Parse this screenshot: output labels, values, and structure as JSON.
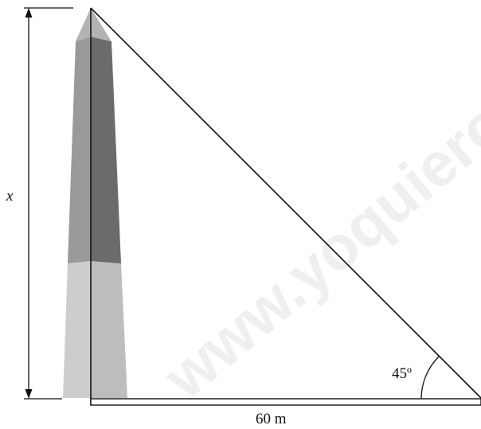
{
  "labels": {
    "height": "x",
    "base": "60 m",
    "angle": "45º"
  },
  "watermark": "www.yoquiero",
  "colors": {
    "obelisk_top_left": "#9a9a9a",
    "obelisk_top_right": "#6b6b6b",
    "obelisk_tip": "#b3b3b3",
    "obelisk_bottom_left": "#cdcdcd",
    "obelisk_bottom_right": "#bdbdbd",
    "line": "#111111"
  }
}
